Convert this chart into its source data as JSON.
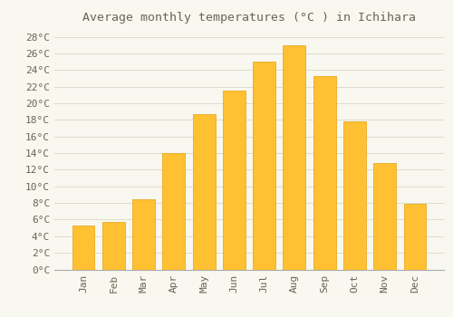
{
  "title": "Average monthly temperatures (°C ) in Ichihara",
  "months": [
    "Jan",
    "Feb",
    "Mar",
    "Apr",
    "May",
    "Jun",
    "Jul",
    "Aug",
    "Sep",
    "Oct",
    "Nov",
    "Dec"
  ],
  "temperatures": [
    5.3,
    5.7,
    8.5,
    14.0,
    18.7,
    21.5,
    25.0,
    27.0,
    23.3,
    17.8,
    12.8,
    7.9
  ],
  "bar_color_top": "#FFC032",
  "bar_color_bottom": "#FFB020",
  "bar_edge_color": "#E8A010",
  "background_color": "#F8F8F0",
  "grid_color": "#DDDDCC",
  "text_color": "#666655",
  "ylim": [
    0,
    29
  ],
  "yticks": [
    0,
    2,
    4,
    6,
    8,
    10,
    12,
    14,
    16,
    18,
    20,
    22,
    24,
    26,
    28
  ],
  "title_fontsize": 9.5,
  "tick_fontsize": 8.0,
  "bar_width": 0.75
}
